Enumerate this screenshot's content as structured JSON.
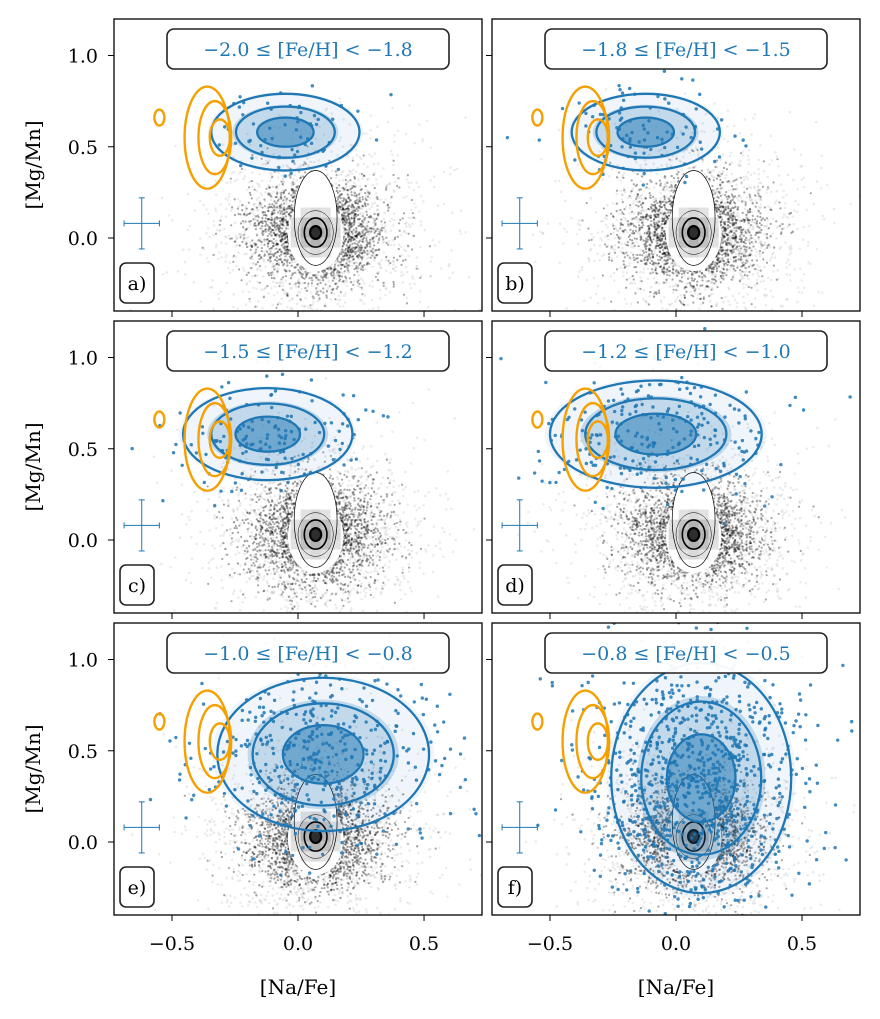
{
  "figure": {
    "x_axis_label": "[Na/Fe]",
    "y_axis_label": "[Mg/Mn]",
    "x_ticks": [
      "−0.5",
      "0.0",
      "0.5"
    ],
    "y_ticks": [
      "1.0",
      "0.5",
      "0.0"
    ]
  },
  "colors": {
    "selected": "#1f77b4",
    "reference": "#f5a000",
    "background": "#000000"
  },
  "chart_data": [
    {
      "type": "scatter",
      "panel": "a)",
      "bin_label": "−2.0 ≤ [Fe/H] < −1.8",
      "feh_range": [
        -2.0,
        -1.8
      ],
      "xlim": [
        -0.73,
        0.73
      ],
      "ylim": [
        -0.4,
        1.2
      ],
      "xlabel": "",
      "ylabel": "[Mg/Mn]",
      "grid": false,
      "series": [
        {
          "role": "background density (all stars)",
          "color": "#000000",
          "center": [
            0.07,
            0.03
          ]
        },
        {
          "role": "stars in [Fe/H] bin",
          "color": "#1f77b4",
          "center": [
            -0.05,
            0.58
          ],
          "spread": [
            0.14,
            0.1
          ],
          "count": 60
        },
        {
          "role": "reference contours",
          "color": "#f5a000",
          "center": [
            -0.36,
            0.55
          ]
        }
      ],
      "error_bar": {
        "x": -0.62,
        "y": 0.08,
        "xerr": 0.07,
        "yerr": 0.14
      }
    },
    {
      "type": "scatter",
      "panel": "b)",
      "bin_label": "−1.8 ≤ [Fe/H] < −1.5",
      "feh_range": [
        -1.8,
        -1.5
      ],
      "xlim": [
        -0.73,
        0.73
      ],
      "ylim": [
        -0.4,
        1.2
      ],
      "xlabel": "",
      "ylabel": "",
      "grid": false,
      "series": [
        {
          "role": "background density (all stars)",
          "color": "#000000",
          "center": [
            0.07,
            0.03
          ]
        },
        {
          "role": "stars in [Fe/H] bin",
          "color": "#1f77b4",
          "center": [
            -0.12,
            0.58
          ],
          "spread": [
            0.14,
            0.1
          ],
          "count": 90
        },
        {
          "role": "reference contours",
          "color": "#f5a000",
          "center": [
            -0.36,
            0.55
          ]
        }
      ],
      "error_bar": {
        "x": -0.62,
        "y": 0.08,
        "xerr": 0.07,
        "yerr": 0.14
      }
    },
    {
      "type": "scatter",
      "panel": "c)",
      "bin_label": "−1.5 ≤ [Fe/H] < −1.2",
      "feh_range": [
        -1.5,
        -1.2
      ],
      "xlim": [
        -0.73,
        0.73
      ],
      "ylim": [
        -0.4,
        1.2
      ],
      "xlabel": "",
      "ylabel": "[Mg/Mn]",
      "grid": false,
      "series": [
        {
          "role": "background density (all stars)",
          "color": "#000000",
          "center": [
            0.07,
            0.03
          ]
        },
        {
          "role": "stars in [Fe/H] bin",
          "color": "#1f77b4",
          "center": [
            -0.12,
            0.58
          ],
          "spread": [
            0.16,
            0.12
          ],
          "count": 140
        },
        {
          "role": "reference contours",
          "color": "#f5a000",
          "center": [
            -0.36,
            0.55
          ]
        }
      ],
      "error_bar": {
        "x": -0.62,
        "y": 0.08,
        "xerr": 0.07,
        "yerr": 0.14
      }
    },
    {
      "type": "scatter",
      "panel": "d)",
      "bin_label": "−1.2 ≤ [Fe/H] < −1.0",
      "feh_range": [
        -1.2,
        -1.0
      ],
      "xlim": [
        -0.73,
        0.73
      ],
      "ylim": [
        -0.4,
        1.2
      ],
      "xlabel": "",
      "ylabel": "",
      "grid": false,
      "series": [
        {
          "role": "background density (all stars)",
          "color": "#000000",
          "center": [
            0.07,
            0.03
          ]
        },
        {
          "role": "stars in [Fe/H] bin",
          "color": "#1f77b4",
          "center": [
            -0.08,
            0.58
          ],
          "spread": [
            0.2,
            0.14
          ],
          "count": 240
        },
        {
          "role": "reference contours",
          "color": "#f5a000",
          "center": [
            -0.36,
            0.55
          ]
        }
      ],
      "error_bar": {
        "x": -0.62,
        "y": 0.08,
        "xerr": 0.07,
        "yerr": 0.14
      }
    },
    {
      "type": "scatter",
      "panel": "e)",
      "bin_label": "−1.0 ≤ [Fe/H] < −0.8",
      "feh_range": [
        -1.0,
        -0.8
      ],
      "xlim": [
        -0.73,
        0.73
      ],
      "ylim": [
        -0.4,
        1.2
      ],
      "xlabel": "[Na/Fe]",
      "ylabel": "[Mg/Mn]",
      "grid": false,
      "series": [
        {
          "role": "background density (all stars)",
          "color": "#000000",
          "center": [
            0.07,
            0.03
          ]
        },
        {
          "role": "stars in [Fe/H] bin",
          "color": "#1f77b4",
          "center": [
            0.1,
            0.48
          ],
          "spread": [
            0.2,
            0.2
          ],
          "count": 420
        },
        {
          "role": "reference contours",
          "color": "#f5a000",
          "center": [
            -0.36,
            0.55
          ]
        }
      ],
      "error_bar": {
        "x": -0.62,
        "y": 0.08,
        "xerr": 0.07,
        "yerr": 0.14
      }
    },
    {
      "type": "scatter",
      "panel": "f)",
      "bin_label": "−0.8 ≤ [Fe/H] < −0.5",
      "feh_range": [
        -0.8,
        -0.5
      ],
      "xlim": [
        -0.73,
        0.73
      ],
      "ylim": [
        -0.4,
        1.2
      ],
      "xlabel": "[Na/Fe]",
      "ylabel": "",
      "grid": false,
      "series": [
        {
          "role": "background density (all stars)",
          "color": "#000000",
          "center": [
            0.07,
            0.03
          ]
        },
        {
          "role": "stars in [Fe/H] bin",
          "color": "#1f77b4",
          "center": [
            0.1,
            0.35
          ],
          "spread": [
            0.17,
            0.3
          ],
          "count": 900
        },
        {
          "role": "reference contours",
          "color": "#f5a000",
          "center": [
            -0.36,
            0.55
          ]
        }
      ],
      "error_bar": {
        "x": -0.62,
        "y": 0.08,
        "xerr": 0.07,
        "yerr": 0.14
      }
    }
  ]
}
